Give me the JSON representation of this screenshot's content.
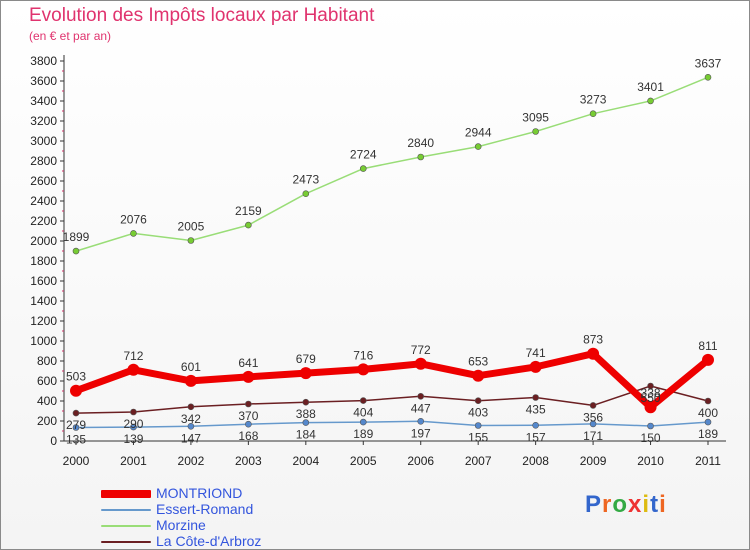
{
  "title": "Evolution des Impôts locaux par Habitant",
  "subtitle": "(en € et par an)",
  "logo": "Proxiti",
  "chart_data": {
    "type": "line",
    "title": "Evolution des Impôts locaux par Habitant",
    "ylabel": "(en € et par an)",
    "xlabel": "",
    "ylim": [
      0,
      3800
    ],
    "ytick_step": 200,
    "grid": false,
    "categories": [
      "2000",
      "2001",
      "2002",
      "2003",
      "2004",
      "2005",
      "2006",
      "2007",
      "2008",
      "2009",
      "2010",
      "2011"
    ],
    "series": [
      {
        "name": "Morzine",
        "color": "#99dd77",
        "marker": "#77cc33",
        "values": [
          1899,
          2076,
          2005,
          2159,
          2473,
          2724,
          2840,
          2944,
          3095,
          3273,
          3401,
          3637
        ]
      },
      {
        "name": "La Côte-d'Arbroz",
        "color": "#6b1f22",
        "marker": "#6b1f22",
        "values": [
          279,
          290,
          342,
          370,
          388,
          404,
          447,
          403,
          435,
          356,
          550,
          400
        ]
      },
      {
        "name": "Essert-Romand",
        "color": "#6699cc",
        "marker": "#5588cc",
        "values": [
          135,
          139,
          147,
          168,
          184,
          189,
          197,
          155,
          157,
          171,
          150,
          189
        ]
      },
      {
        "name": "MONTRIOND",
        "color": "#ee0000",
        "marker": "#ee0000",
        "values": [
          503,
          712,
          601,
          641,
          679,
          716,
          772,
          653,
          741,
          873,
          338,
          811
        ]
      }
    ],
    "legend": [
      {
        "name": "MONTRIOND",
        "color": "#ee0000"
      },
      {
        "name": "Essert-Romand",
        "color": "#6699cc"
      },
      {
        "name": "Morzine",
        "color": "#99dd77"
      },
      {
        "name": "La Côte-d'Arbroz",
        "color": "#6b1f22"
      }
    ]
  }
}
